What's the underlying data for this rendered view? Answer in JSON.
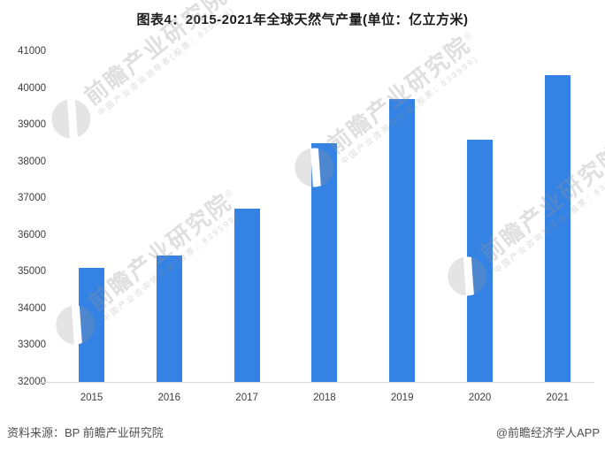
{
  "title": "图表4：2015-2021年全球天然气产量(单位：亿立方米)",
  "chart_data": {
    "type": "bar",
    "title": "图表4：2015-2021年全球天然气产量(单位：亿立方米)",
    "unit": "亿立方米",
    "categories": [
      "2015",
      "2016",
      "2017",
      "2018",
      "2019",
      "2020",
      "2021"
    ],
    "values": [
      35100,
      35440,
      36720,
      38500,
      39700,
      38590,
      40340
    ],
    "xlabel": "",
    "ylabel": "",
    "ylim": [
      32000,
      41000
    ],
    "ytick_step": 1000,
    "grid": false,
    "legend": false,
    "bar_color": "#3482e4"
  },
  "footer": {
    "source": "资料来源：BP 前瞻产业研究院",
    "credit": "@前瞻经济学人APP"
  },
  "watermark": {
    "brand": "前瞻产业研究院",
    "registered": "®",
    "subtitle": "中国产业咨询领导者(股票：839599)"
  }
}
